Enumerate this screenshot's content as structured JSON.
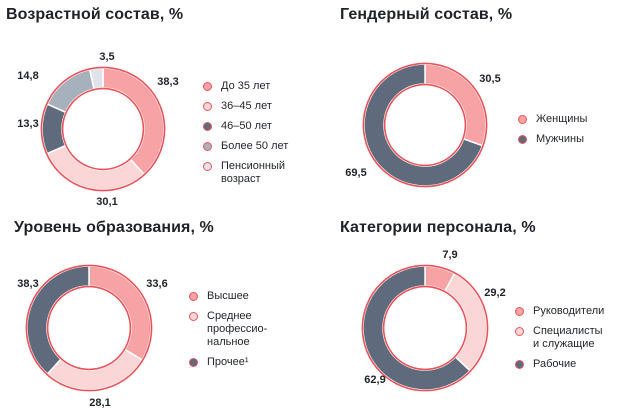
{
  "colors": {
    "outline": "#e8545a",
    "ring_bg": "#ffffff",
    "stroke": "#ffffff"
  },
  "chart_data": [
    {
      "type": "pie",
      "title": "Возрастной состав, %",
      "series": [
        {
          "name": "До 35 лет",
          "value": 38.3,
          "label": "38,3",
          "color": "#f7a3a6"
        },
        {
          "name": "36–45 лет",
          "value": 30.1,
          "label": "30,1",
          "color": "#fbd6d7"
        },
        {
          "name": "46–50 лет",
          "value": 13.3,
          "label": "13,3",
          "color": "#5f6b7c"
        },
        {
          "name": "Более 50 лет",
          "value": 14.8,
          "label": "14,8",
          "color": "#a7b1be"
        },
        {
          "name": "Пенсионный\nвозраст",
          "value": 3.5,
          "label": "3,5",
          "color": "#dfe4ea"
        }
      ]
    },
    {
      "type": "pie",
      "title": "Гендерный состав, %",
      "series": [
        {
          "name": "Женщины",
          "value": 30.5,
          "label": "30,5",
          "color": "#f7a3a6"
        },
        {
          "name": "Мужчины",
          "value": 69.5,
          "label": "69,5",
          "color": "#5f6b7c"
        }
      ]
    },
    {
      "type": "pie",
      "title": "Уровень образования, %",
      "series": [
        {
          "name": "Высшее",
          "value": 33.6,
          "label": "33,6",
          "color": "#f7a3a6"
        },
        {
          "name": "Среднее\nпрофессио-\nнальное",
          "value": 28.1,
          "label": "28,1",
          "color": "#fbd6d7"
        },
        {
          "name": "Прочее¹",
          "value": 38.3,
          "label": "38,3",
          "color": "#5f6b7c"
        }
      ]
    },
    {
      "type": "pie",
      "title": "Категории персонала, %",
      "series": [
        {
          "name": "Руководители",
          "value": 7.9,
          "label": "7,9",
          "color": "#f7a3a6"
        },
        {
          "name": "Специалисты\nи служащие",
          "value": 29.2,
          "label": "29,2",
          "color": "#fbd6d7"
        },
        {
          "name": "Рабочие",
          "value": 62.9,
          "label": "62,9",
          "color": "#5f6b7c"
        }
      ]
    }
  ]
}
